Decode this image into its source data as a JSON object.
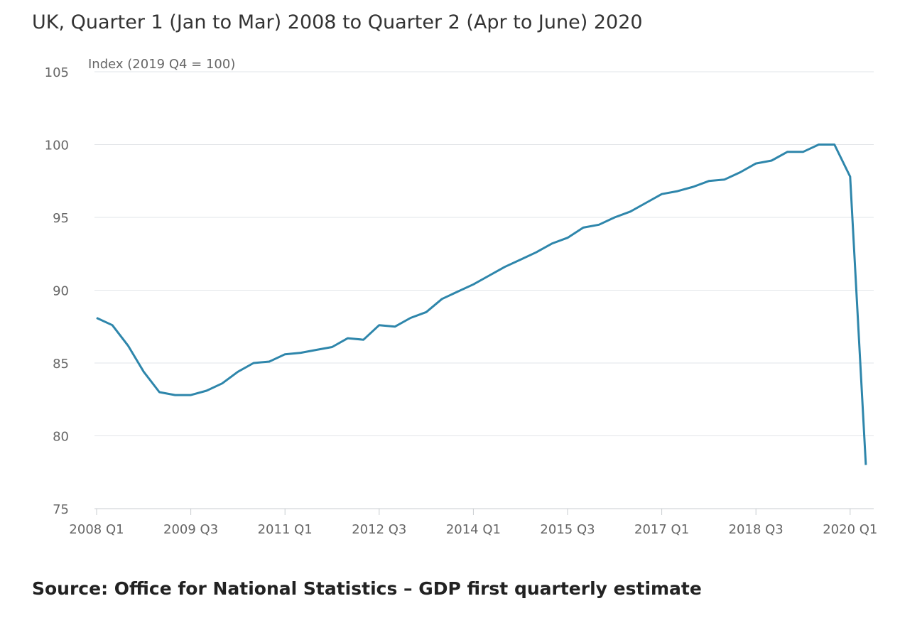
{
  "header": {
    "subtitle": "UK, Quarter 1 (Jan to Mar) 2008 to Quarter 2 (Apr to June) 2020"
  },
  "footer": {
    "source": "Source: Office for National Statistics – GDP first quarterly estimate"
  },
  "chart_data": {
    "type": "line",
    "title": "",
    "subtitle": "UK, Quarter 1 (Jan to Mar) 2008 to Quarter 2 (Apr to June) 2020",
    "ylabel": "Index (2019 Q4 = 100)",
    "xlabel": "",
    "ylim": [
      75,
      105
    ],
    "yticks": [
      75,
      80,
      85,
      90,
      95,
      100,
      105
    ],
    "xticks": [
      "2008 Q1",
      "2009 Q3",
      "2011 Q1",
      "2012 Q3",
      "2014 Q1",
      "2015 Q3",
      "2017 Q1",
      "2018 Q3",
      "2020 Q1"
    ],
    "grid": true,
    "line_color": "#2e86ab",
    "categories": [
      "2008 Q1",
      "2008 Q2",
      "2008 Q3",
      "2008 Q4",
      "2009 Q1",
      "2009 Q2",
      "2009 Q3",
      "2009 Q4",
      "2010 Q1",
      "2010 Q2",
      "2010 Q3",
      "2010 Q4",
      "2011 Q1",
      "2011 Q2",
      "2011 Q3",
      "2011 Q4",
      "2012 Q1",
      "2012 Q2",
      "2012 Q3",
      "2012 Q4",
      "2013 Q1",
      "2013 Q2",
      "2013 Q3",
      "2013 Q4",
      "2014 Q1",
      "2014 Q2",
      "2014 Q3",
      "2014 Q4",
      "2015 Q1",
      "2015 Q2",
      "2015 Q3",
      "2015 Q4",
      "2016 Q1",
      "2016 Q2",
      "2016 Q3",
      "2016 Q4",
      "2017 Q1",
      "2017 Q2",
      "2017 Q3",
      "2017 Q4",
      "2018 Q1",
      "2018 Q2",
      "2018 Q3",
      "2018 Q4",
      "2019 Q1",
      "2019 Q2",
      "2019 Q3",
      "2019 Q4",
      "2020 Q1",
      "2020 Q2"
    ],
    "series": [
      {
        "values": [
          88.1,
          87.6,
          86.2,
          84.4,
          83.0,
          82.8,
          82.8,
          83.1,
          83.6,
          84.4,
          85.0,
          85.1,
          85.6,
          85.7,
          85.9,
          86.1,
          86.7,
          86.6,
          87.6,
          87.5,
          88.1,
          88.5,
          89.4,
          89.9,
          90.4,
          91.0,
          91.6,
          92.1,
          92.6,
          93.2,
          93.6,
          94.3,
          94.5,
          95.0,
          95.4,
          96.0,
          96.6,
          96.8,
          97.1,
          97.5,
          97.6,
          98.1,
          98.7,
          98.9,
          99.5,
          99.5,
          100.0,
          100.0,
          97.8,
          78.0
        ]
      }
    ]
  }
}
